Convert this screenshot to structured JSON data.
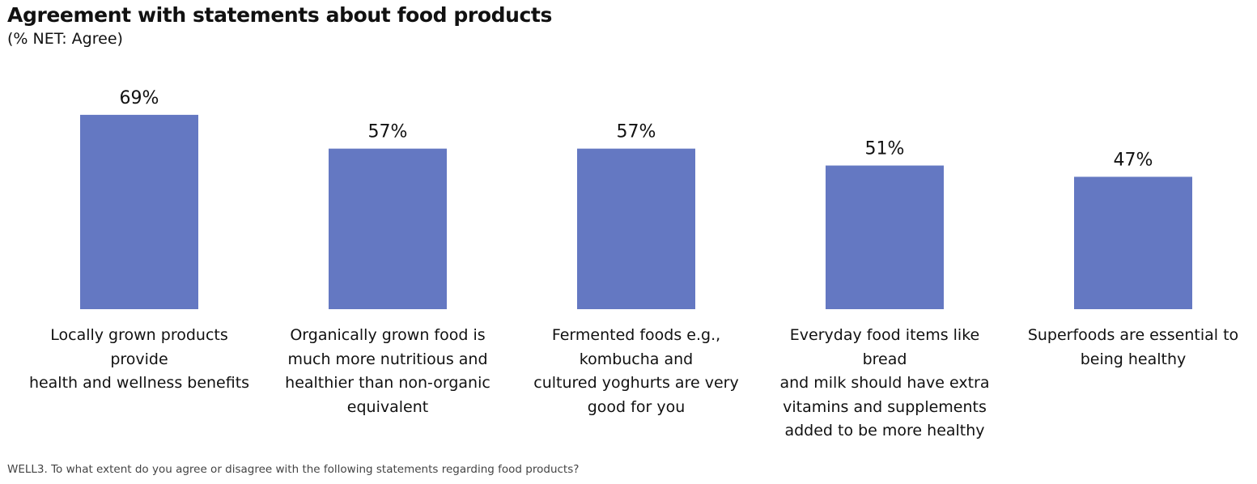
{
  "title": "Agreement with statements about food products",
  "subtitle": "(% NET: Agree)",
  "footnote": "WELL3. To what extent do you agree or disagree with the following statements regarding food products?",
  "colors": {
    "bar": "#6478C2",
    "text": "#111111"
  },
  "chart_data": {
    "type": "bar",
    "title": "Agreement with statements about food products",
    "subtitle": "(% NET: Agree)",
    "categories": [
      "Locally grown products provide health and wellness benefits",
      "Organically grown food is much more nutritious and healthier than non-organic equivalent",
      "Fermented foods e.g., kombucha and cultured yoghurts are very good for you",
      "Everyday food items like bread and milk should have extra vitamins and supplements added to be more healthy",
      "Superfoods are essential to being healthy"
    ],
    "category_lines": [
      [
        "Locally grown products provide",
        "health and wellness benefits"
      ],
      [
        "Organically grown food is",
        "much more nutritious and",
        "healthier than non-organic",
        "equivalent"
      ],
      [
        "Fermented foods e.g.,",
        "kombucha and",
        "cultured yoghurts are very",
        "good for you"
      ],
      [
        "Everyday food items like bread",
        "and milk should have extra",
        "vitamins and supplements",
        "added to be more healthy"
      ],
      [
        "Superfoods are essential to",
        "being healthy"
      ]
    ],
    "values": [
      69,
      57,
      57,
      51,
      47
    ],
    "value_labels": [
      "69%",
      "57%",
      "57%",
      "51%",
      "47%"
    ],
    "unit": "%",
    "xlabel": "",
    "ylabel": "",
    "grid": false,
    "legend": "none"
  }
}
